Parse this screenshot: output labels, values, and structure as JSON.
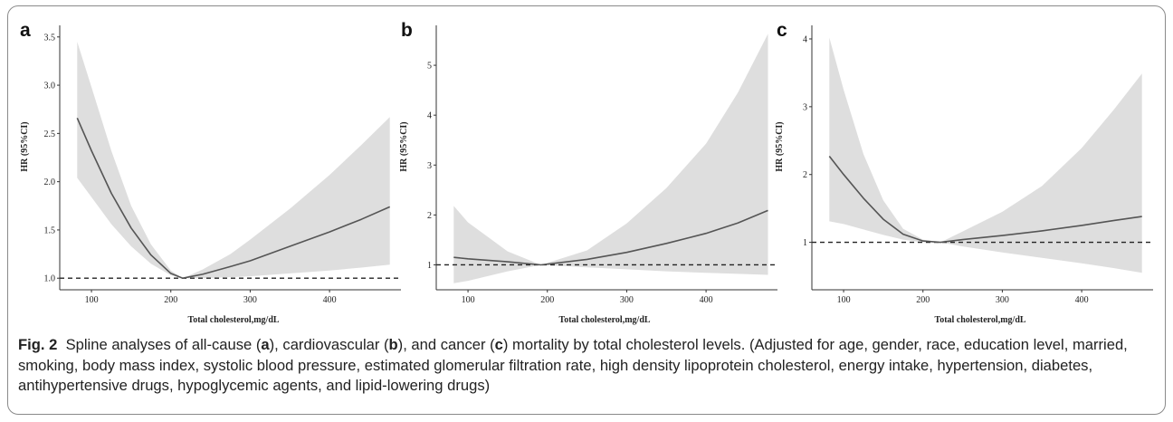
{
  "chart_data": [
    {
      "type": "line",
      "panel_label": "a",
      "xlabel": "Total cholesterol,mg/dL",
      "ylabel": "HR (95%CI)",
      "x_ticks": [
        100,
        200,
        300,
        400
      ],
      "y_ticks": [
        1.0,
        1.5,
        2.0,
        2.5,
        3.0,
        3.5
      ],
      "y_tick_labels": [
        "1.0",
        "1.5",
        "2.0",
        "2.5",
        "3.0",
        "3.5"
      ],
      "xlim": [
        60,
        490
      ],
      "ylim": [
        0.88,
        3.62
      ],
      "reference_line": 1.0,
      "series": [
        {
          "x": [
            82,
            100,
            125,
            150,
            175,
            200,
            215,
            240,
            275,
            300,
            350,
            400,
            440,
            476
          ],
          "y": [
            2.66,
            2.32,
            1.88,
            1.52,
            1.24,
            1.05,
            1.0,
            1.04,
            1.12,
            1.18,
            1.33,
            1.48,
            1.61,
            1.74
          ],
          "lower": [
            2.04,
            1.84,
            1.56,
            1.33,
            1.15,
            1.03,
            1.0,
            1.0,
            1.01,
            1.02,
            1.05,
            1.08,
            1.11,
            1.14
          ],
          "upper": [
            3.45,
            2.98,
            2.32,
            1.75,
            1.35,
            1.08,
            1.0,
            1.09,
            1.25,
            1.4,
            1.72,
            2.07,
            2.38,
            2.67
          ]
        }
      ]
    },
    {
      "type": "line",
      "panel_label": "b",
      "xlabel": "Total cholesterol,mg/dL",
      "ylabel": "HR (95%CI)",
      "x_ticks": [
        100,
        200,
        300,
        400
      ],
      "y_ticks": [
        1,
        2,
        3,
        4,
        5
      ],
      "y_tick_labels": [
        "1",
        "2",
        "3",
        "4",
        "5"
      ],
      "xlim": [
        60,
        490
      ],
      "ylim": [
        0.5,
        5.8
      ],
      "reference_line": 1.0,
      "series": [
        {
          "x": [
            82,
            100,
            150,
            192,
            250,
            300,
            350,
            400,
            440,
            478
          ],
          "y": [
            1.15,
            1.12,
            1.06,
            1.0,
            1.11,
            1.25,
            1.43,
            1.63,
            1.84,
            2.09
          ],
          "lower": [
            0.63,
            0.68,
            0.87,
            1.0,
            0.95,
            0.91,
            0.87,
            0.84,
            0.82,
            0.8
          ],
          "upper": [
            2.18,
            1.85,
            1.27,
            1.0,
            1.29,
            1.83,
            2.54,
            3.43,
            4.45,
            5.63
          ]
        }
      ]
    },
    {
      "type": "line",
      "panel_label": "c",
      "xlabel": "Total cholesterol,mg/dL",
      "ylabel": "HR (95%CI)",
      "x_ticks": [
        100,
        200,
        300,
        400
      ],
      "y_ticks": [
        1,
        2,
        3,
        4
      ],
      "y_tick_labels": [
        "1",
        "2",
        "3",
        "4"
      ],
      "xlim": [
        60,
        490
      ],
      "ylim": [
        0.3,
        4.2
      ],
      "reference_line": 1.0,
      "series": [
        {
          "x": [
            82,
            100,
            125,
            150,
            175,
            200,
            222,
            250,
            300,
            350,
            400,
            440,
            476
          ],
          "y": [
            2.27,
            2.0,
            1.65,
            1.34,
            1.12,
            1.02,
            1.0,
            1.04,
            1.1,
            1.17,
            1.25,
            1.32,
            1.38
          ],
          "lower": [
            1.31,
            1.27,
            1.19,
            1.11,
            1.04,
            1.0,
            1.0,
            0.94,
            0.85,
            0.77,
            0.69,
            0.62,
            0.55
          ],
          "upper": [
            4.02,
            3.25,
            2.3,
            1.62,
            1.2,
            1.04,
            1.0,
            1.16,
            1.45,
            1.83,
            2.39,
            2.95,
            3.49
          ]
        }
      ]
    }
  ],
  "caption": {
    "figure_label": "Fig. 2",
    "text_1": "Spline analyses of all-cause (",
    "bold_a": "a",
    "text_2": "), cardiovascular (",
    "bold_b": "b",
    "text_3": "), and cancer (",
    "bold_c": "c",
    "text_4": ") mortality by total cholesterol levels. (Adjusted for age, gender, race, education level, married, smoking, body mass index, systolic blood pressure, estimated glomerular filtration rate, high density lipoprotein cholesterol, energy intake, hypertension, diabetes, antihypertensive drugs, hypoglycemic agents, and lipid-lowering drugs)"
  },
  "colors": {
    "band": "#dedede",
    "line": "#555555",
    "axis": "#333333",
    "reference": "#222222"
  }
}
